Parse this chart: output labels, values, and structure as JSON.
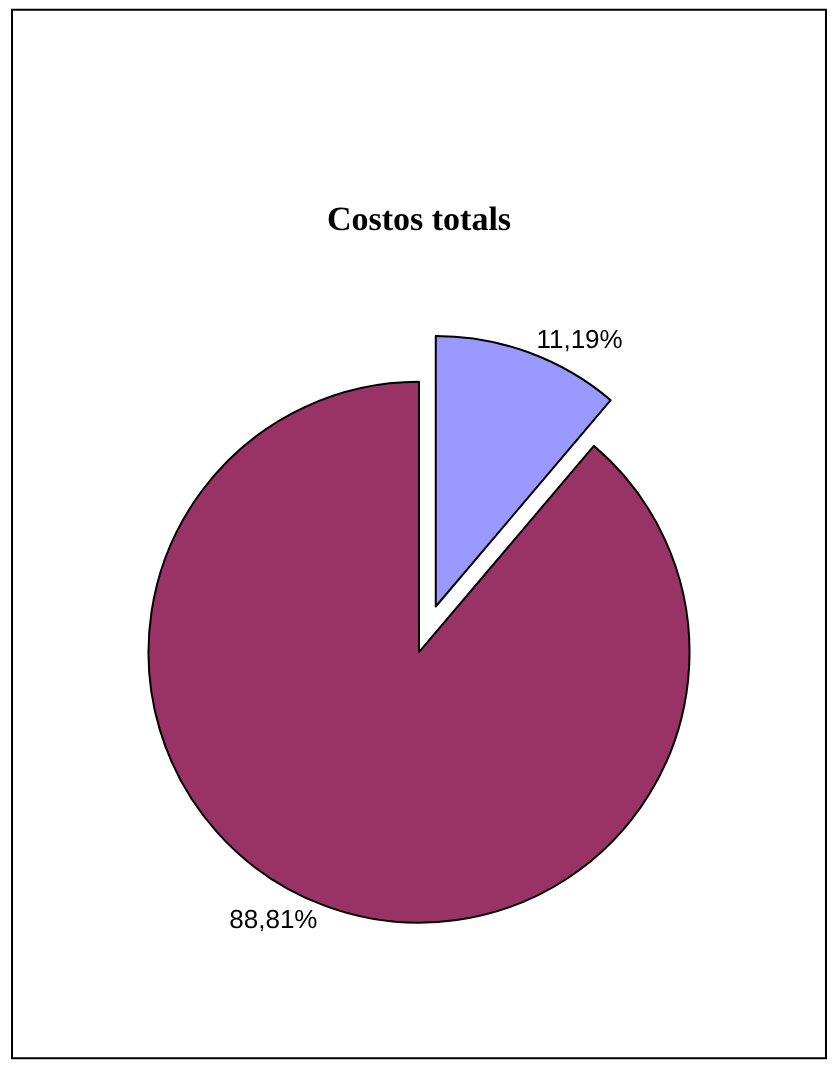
{
  "chart_data": {
    "type": "pie",
    "title": "Costos totals",
    "categories": [
      null,
      null
    ],
    "values": [
      11.19,
      88.81
    ],
    "colors": [
      "#9999ff",
      "#993366"
    ],
    "value_labels": [
      "11,19%",
      "88,81%"
    ],
    "legend": false
  }
}
